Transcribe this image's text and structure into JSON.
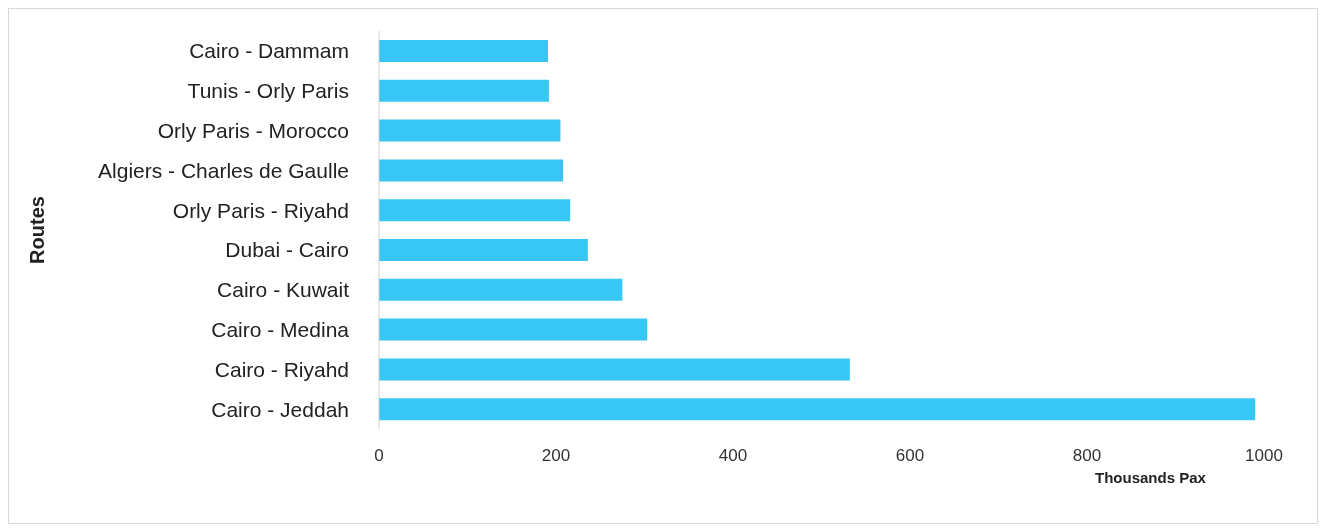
{
  "chart_data": {
    "type": "bar",
    "orientation": "horizontal",
    "categories": [
      "Cairo - Dammam",
      "Tunis - Orly Paris",
      "Orly Paris - Morocco",
      "Algiers - Charles de Gaulle",
      "Orly Paris - Riyahd",
      "Dubai - Cairo",
      "Cairo - Kuwait",
      "Cairo - Medina",
      "Cairo - Riyahd",
      "Cairo - Jeddah"
    ],
    "values": [
      191,
      192,
      205,
      208,
      216,
      236,
      275,
      303,
      532,
      990
    ],
    "color": "#38c6f4",
    "xlim": [
      0,
      1000
    ],
    "xticks": [
      0,
      200,
      400,
      600,
      800,
      1000
    ],
    "xlabel": "Thousands Pax",
    "ylabel": "Routes",
    "grid": false
  }
}
